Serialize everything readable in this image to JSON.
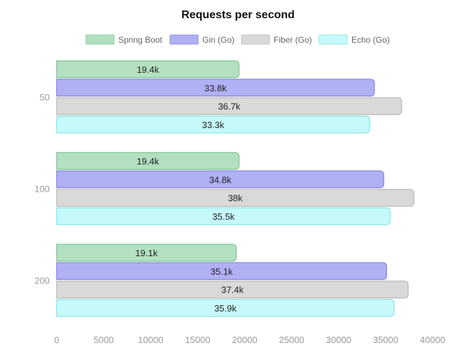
{
  "chart_data": {
    "type": "bar",
    "orientation": "horizontal",
    "title": "Requests per second",
    "categories": [
      "50",
      "100",
      "200"
    ],
    "series": [
      {
        "name": "Spring Boot",
        "values": [
          19400,
          19400,
          19100
        ],
        "labels": [
          "19.4k",
          "19.4k",
          "19.1k"
        ],
        "color": "#b3e0c0",
        "border": "#8ccaa0"
      },
      {
        "name": "Gin (Go)",
        "values": [
          33800,
          34800,
          35100
        ],
        "labels": [
          "33.8k",
          "34.8k",
          "35.1k"
        ],
        "color": "#b0b0f5",
        "border": "#9090e0"
      },
      {
        "name": "Fiber (Go)",
        "values": [
          36700,
          38000,
          37400
        ],
        "labels": [
          "36.7k",
          "38k",
          "37.4k"
        ],
        "color": "#d9d9d9",
        "border": "#c0c0c0"
      },
      {
        "name": "Echo (Go)",
        "values": [
          33300,
          35500,
          35900
        ],
        "labels": [
          "33.3k",
          "35.5k",
          "35.9k"
        ],
        "color": "#c6fafa",
        "border": "#9ae6e6"
      }
    ],
    "xlim": [
      0,
      40000
    ],
    "xticks": [
      "0",
      "5000",
      "10000",
      "15000",
      "20000",
      "25000",
      "30000",
      "35000",
      "40000"
    ],
    "grid": false,
    "legend": "top-center"
  }
}
